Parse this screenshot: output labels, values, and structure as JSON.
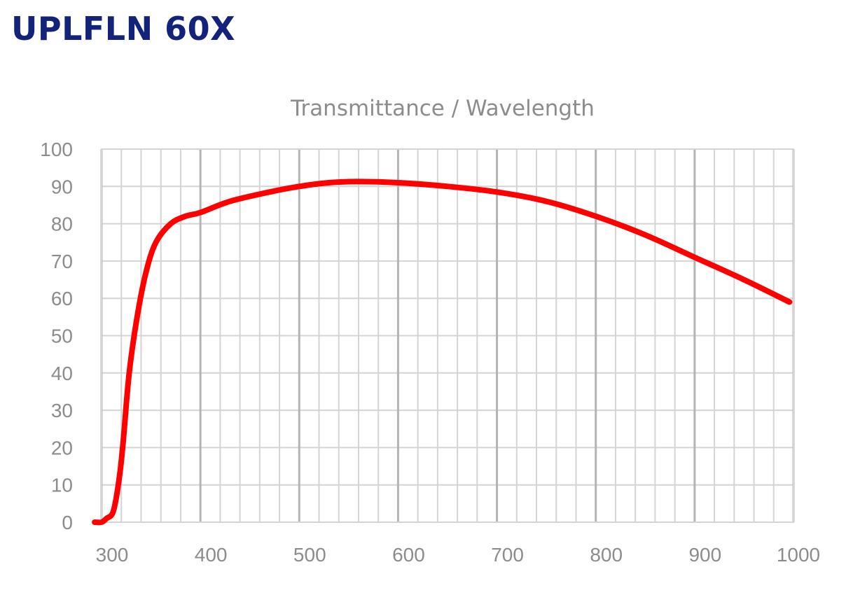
{
  "header": {
    "title": "UPLFLN 60X"
  },
  "colors": {
    "title": "#13237a",
    "line": "#ff0000",
    "grid_minor": "#d4d4d4",
    "grid_major": "#b4b4b4",
    "text": "#8c8c8c"
  },
  "chart_data": {
    "type": "line",
    "title": "Transmittance / Wavelength",
    "xlabel": "",
    "ylabel": "",
    "xlim": [
      300,
      1000
    ],
    "ylim": [
      0,
      100
    ],
    "x_ticks": [
      300,
      400,
      500,
      600,
      700,
      800,
      900,
      1000
    ],
    "y_ticks": [
      0,
      10,
      20,
      30,
      40,
      50,
      60,
      70,
      80,
      90,
      100
    ],
    "grid": true,
    "series": [
      {
        "color": "#ff0000",
        "points": [
          [
            293,
            0
          ],
          [
            300,
            0
          ],
          [
            305,
            1
          ],
          [
            312,
            3
          ],
          [
            318,
            12
          ],
          [
            322,
            22
          ],
          [
            328,
            40
          ],
          [
            336,
            55
          ],
          [
            345,
            67
          ],
          [
            355,
            75
          ],
          [
            370,
            80
          ],
          [
            385,
            82
          ],
          [
            400,
            83
          ],
          [
            430,
            86
          ],
          [
            470,
            88.5
          ],
          [
            500,
            90
          ],
          [
            530,
            91
          ],
          [
            560,
            91.3
          ],
          [
            600,
            91
          ],
          [
            650,
            90
          ],
          [
            700,
            88.5
          ],
          [
            750,
            86
          ],
          [
            800,
            82
          ],
          [
            850,
            77
          ],
          [
            900,
            71
          ],
          [
            950,
            65
          ],
          [
            996,
            59
          ]
        ]
      }
    ]
  }
}
